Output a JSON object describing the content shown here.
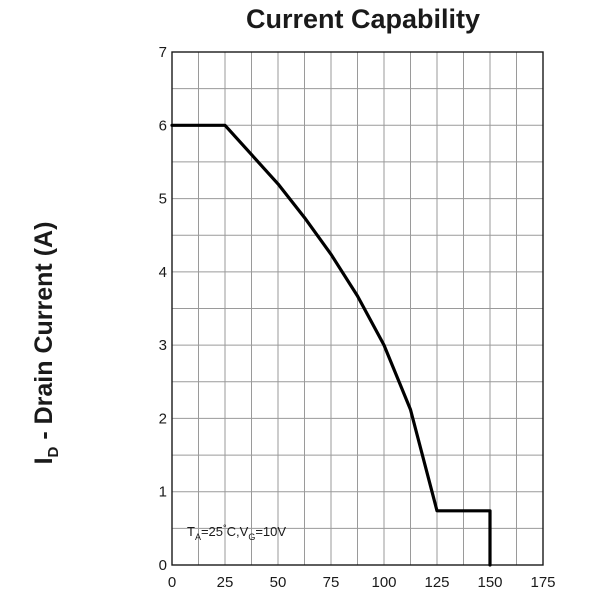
{
  "chart_data": {
    "type": "line",
    "title": "Current Capability",
    "ylabel_main": "I",
    "ylabel_sub": "D",
    "ylabel_rest": " - Drain Current (A)",
    "xlim": [
      0,
      175
    ],
    "ylim": [
      0,
      7
    ],
    "x_ticks": [
      0,
      25,
      50,
      75,
      100,
      125,
      150,
      175
    ],
    "y_ticks": [
      0,
      1,
      2,
      3,
      4,
      5,
      6,
      7
    ],
    "grid": true,
    "series": [
      {
        "x": [
          0,
          25,
          37.5,
          50,
          62.5,
          75,
          87.5,
          100,
          112.5,
          125,
          137.5,
          143.75,
          147.5,
          150,
          150
        ],
        "y": [
          6,
          6,
          5.6,
          5.2,
          4.74,
          4.24,
          3.67,
          3.0,
          2.12,
          0.74,
          0.74,
          0.74,
          0.74,
          0.74,
          0
        ]
      }
    ],
    "annotation": {
      "parts": [
        "T",
        "A",
        "=25",
        "°",
        "C,V",
        "G",
        "=10V"
      ]
    }
  }
}
